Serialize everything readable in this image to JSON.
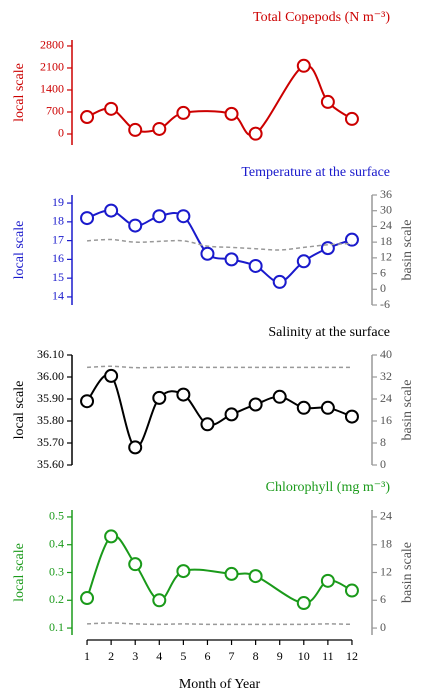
{
  "chart_data": [
    {
      "type": "line",
      "title": "Total Copepods (N m⁻³)",
      "title_color": "#cc0000",
      "ylabel": "local scale",
      "xlim": [
        0.5,
        12.5
      ],
      "ylim": [
        -350,
        2990
      ],
      "yticks": [
        0,
        700,
        1400,
        2100,
        2800
      ],
      "series": [
        {
          "color": "#cc0000",
          "x": [
            1,
            2,
            3,
            4,
            5,
            7,
            8,
            10,
            11,
            12
          ],
          "values": [
            540,
            800,
            130,
            160,
            670,
            640,
            10,
            2170,
            1020,
            480
          ]
        }
      ]
    },
    {
      "type": "line",
      "title": "Temperature at the surface",
      "title_color": "#1a1acc",
      "ylabel": "local scale",
      "y2label": "basin scale",
      "xlim": [
        0.5,
        12.5
      ],
      "ylim": [
        13.57,
        19.43
      ],
      "yticks": [
        14,
        15,
        16,
        17,
        18,
        19
      ],
      "y2lim": [
        -6,
        36
      ],
      "y2ticks": [
        -6,
        0,
        6,
        12,
        18,
        24,
        30,
        36
      ],
      "series": [
        {
          "color": "#1a1acc",
          "x": [
            1,
            2,
            3,
            4,
            5,
            6,
            7,
            8,
            9,
            10,
            11,
            12
          ],
          "values": [
            18.2,
            18.6,
            17.8,
            18.3,
            18.3,
            16.3,
            16.0,
            15.65,
            14.8,
            15.9,
            16.6,
            17.05
          ]
        },
        {
          "color": "#999999",
          "linestyle": "dashed",
          "axis": "y2",
          "x": [
            1,
            2,
            3,
            4,
            5,
            6,
            7,
            8,
            9,
            10,
            11,
            12
          ],
          "values": [
            18.5,
            19,
            18,
            18.3,
            18.5,
            16.5,
            16,
            15.5,
            15,
            16,
            17,
            17.5
          ]
        }
      ]
    },
    {
      "type": "line",
      "title": "Salinity at the surface",
      "title_color": "#000000",
      "ylabel": "local scale",
      "y2label": "basin scale",
      "xlim": [
        0.5,
        12.5
      ],
      "ylim": [
        35.6,
        36.1
      ],
      "yticks": [
        {
          "value": 35.6,
          "label": "35.60"
        },
        {
          "value": 35.7,
          "label": "35.70"
        },
        {
          "value": 35.8,
          "label": "35.80"
        },
        {
          "value": 35.9,
          "label": "35.90"
        },
        {
          "value": 36.0,
          "label": "36.00"
        },
        {
          "value": 36.1,
          "label": "36.10"
        }
      ],
      "y2lim": [
        0,
        40
      ],
      "y2ticks": [
        0,
        8,
        16,
        24,
        32,
        40
      ],
      "series": [
        {
          "color": "#000000",
          "x": [
            1,
            2,
            3,
            4,
            5,
            6,
            7,
            8,
            9,
            10,
            11,
            12
          ],
          "values": [
            35.89,
            36.005,
            35.68,
            35.905,
            35.92,
            35.785,
            35.83,
            35.875,
            35.91,
            35.86,
            35.86,
            35.82
          ]
        },
        {
          "color": "#999999",
          "linestyle": "dashed",
          "axis": "y2",
          "x": [
            1,
            2,
            3,
            4,
            5,
            6,
            7,
            8,
            9,
            10,
            11,
            12
          ],
          "values": [
            35.5,
            35.9,
            35.4,
            35.5,
            35.6,
            35.5,
            35.5,
            35.5,
            35.5,
            35.5,
            35.5,
            35.5
          ]
        }
      ]
    },
    {
      "type": "line",
      "title": "Chlorophyll (mg m⁻³)",
      "title_color": "#1a9a1a",
      "ylabel": "local scale",
      "y2label": "basin scale",
      "xlabel": "Month of Year",
      "xlim": [
        0.5,
        12.5
      ],
      "xticks": [
        1,
        2,
        3,
        4,
        5,
        6,
        7,
        8,
        9,
        10,
        11,
        12
      ],
      "ylim": [
        0.075,
        0.525
      ],
      "yticks": [
        0.1,
        0.2,
        0.3,
        0.4,
        0.5
      ],
      "y2lim": [
        -1.5,
        25.5
      ],
      "y2ticks": [
        0,
        6,
        12,
        18,
        24
      ],
      "series": [
        {
          "color": "#1a9a1a",
          "x": [
            1,
            2,
            3,
            4,
            5,
            7,
            8,
            10,
            11,
            12
          ],
          "values": [
            0.208,
            0.43,
            0.33,
            0.2,
            0.305,
            0.295,
            0.287,
            0.19,
            0.27,
            0.235
          ]
        },
        {
          "color": "#999999",
          "linestyle": "dashed",
          "axis": "y2",
          "x": [
            1,
            2,
            3,
            4,
            5,
            6,
            7,
            8,
            9,
            10,
            11,
            12
          ],
          "values": [
            0.9,
            1.1,
            0.9,
            0.8,
            0.9,
            0.8,
            0.8,
            0.8,
            0.8,
            0.8,
            0.9,
            0.8
          ]
        }
      ]
    }
  ]
}
